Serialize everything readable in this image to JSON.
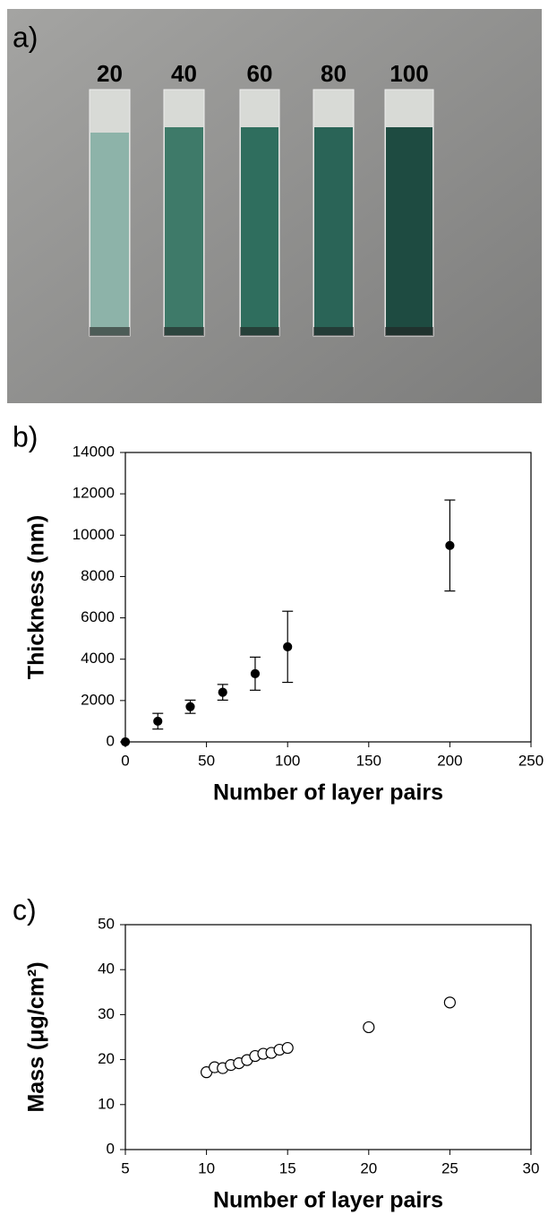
{
  "photo": {
    "label": "a)",
    "strip_labels": [
      20,
      40,
      60,
      80,
      100
    ]
  },
  "chart_data": [
    {
      "type": "scatter",
      "label": "b)",
      "x_label": "Number of layer pairs",
      "y_label": "Thickness (nm)",
      "x": [
        0,
        20,
        40,
        60,
        80,
        100,
        200
      ],
      "values": [
        0,
        1000,
        1700,
        2400,
        3300,
        4600,
        9500
      ],
      "errors": [
        0,
        380,
        320,
        380,
        800,
        1720,
        2200
      ],
      "marker": "filled",
      "color": "#000000",
      "xlim": [
        0,
        250
      ],
      "xticks": [
        0,
        50,
        100,
        150,
        200,
        250
      ],
      "ylim": [
        0,
        14000
      ],
      "yticks": [
        0,
        2000,
        4000,
        6000,
        8000,
        10000,
        12000,
        14000
      ]
    },
    {
      "type": "scatter",
      "label": "c)",
      "x_label": "Number of layer pairs",
      "y_label": "Mass (μg/cm²)",
      "x": [
        10,
        10.5,
        11,
        11.5,
        12,
        12.5,
        13,
        13.5,
        14,
        14.5,
        15,
        20,
        25
      ],
      "values": [
        17.2,
        18.3,
        18.1,
        18.8,
        19.2,
        19.9,
        20.8,
        21.3,
        21.5,
        22.2,
        22.6,
        27.2,
        32.7
      ],
      "marker": "open",
      "color": "#000000",
      "xlim": [
        5,
        30
      ],
      "xticks": [
        5,
        10,
        15,
        20,
        25,
        30
      ],
      "ylim": [
        0,
        50
      ],
      "yticks": [
        0,
        10,
        20,
        30,
        40,
        50
      ]
    }
  ]
}
